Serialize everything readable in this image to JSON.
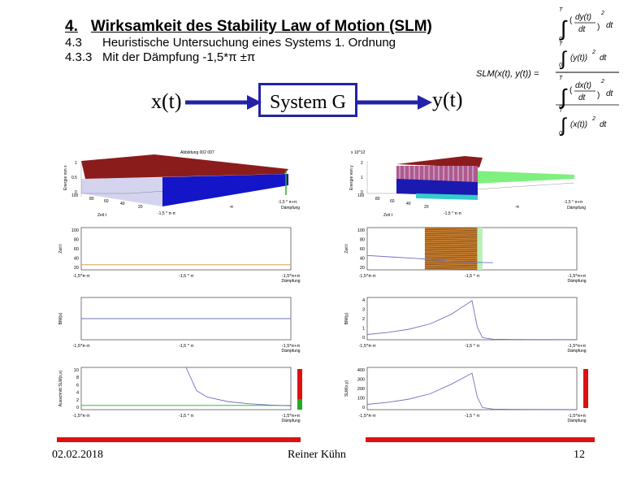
{
  "header": {
    "title_num": "4.",
    "title_text": "Wirksamkeit des Stability Law of Motion (SLM)",
    "sub1_num": "4.3",
    "sub1_text": "Heuristische Untersuchung eines Systems 1. Ordnung",
    "sub2_num": "4.3.3",
    "sub2_text": "Mit der Dämpfung -1,5*π ±π"
  },
  "diagram": {
    "input": "x(t)",
    "system": "System G",
    "output": "y(t)"
  },
  "formula": {
    "lhs": "SLM(x(t), y(t)) =",
    "upper": "T",
    "lower": "0",
    "dt": "dt",
    "num_top": "dy(t)",
    "num_bot": "dt",
    "den1": "(y(t))",
    "num2_top": "dx(t)",
    "num2_bot": "dt",
    "den2": "(x(t))",
    "pow": "2"
  },
  "footer": {
    "date": "02.02.2018",
    "author": "Reiner Kühn",
    "page": "12"
  },
  "colors": {
    "accent_blue": "#2323a8",
    "red": "#dd1111",
    "green": "#22aa22",
    "orange": "#d2a050",
    "line_blue": "#7070c0"
  },
  "chart_data": [
    {
      "type": "surface3d",
      "title": "Abbildung 002 007",
      "zlabel": "Energie von x",
      "ylabel": "Zeit t",
      "xlabel": "Dämpfung",
      "z_ticks": [
        "0",
        "0.5",
        "1"
      ],
      "y_ticks": [
        "100",
        "80",
        "60",
        "40",
        "20"
      ],
      "x_ticks": [
        "-1,5 * π-π",
        "-π",
        "-1,5 * π+π"
      ]
    },
    {
      "type": "surface3d",
      "exponent": "x 10^12",
      "zlabel": "Energie von y",
      "ylabel": "Zeit t",
      "xlabel": "Dämpfung",
      "z_ticks": [
        "0",
        "1",
        "2"
      ],
      "y_ticks": [
        "100",
        "80",
        "60",
        "40",
        "20"
      ],
      "x_ticks": [
        "-1,5 * π-π",
        "-π",
        "-1,5 * π+π"
      ]
    },
    {
      "type": "line",
      "ylabel": "Zeit t",
      "xlabel": "Dämpfung",
      "y_ticks": [
        "100",
        "80",
        "60",
        "40",
        "20"
      ],
      "ylim": [
        0,
        100
      ],
      "x_ticks": [
        "-1,5*π-π",
        "-1,5 * π",
        "-1,5*π+π"
      ],
      "x": [
        -1,
        1
      ],
      "values": [
        12,
        12
      ]
    },
    {
      "type": "area",
      "ylabel": "Zeit t",
      "xlabel": "Dämpfung",
      "y_ticks": [
        "100",
        "80",
        "60",
        "40",
        "20"
      ],
      "ylim": [
        0,
        100
      ],
      "x_ticks": [
        "-1,5*π-π",
        "-1,5 * π",
        "-1,5*π+π"
      ],
      "x": [
        -1,
        -0.8,
        -0.6,
        -0.4,
        -0.2,
        0,
        0.2
      ],
      "values": [
        34,
        31,
        28,
        25,
        20,
        18,
        17
      ],
      "shaded_region_x": [
        -0.45,
        0.05
      ]
    },
    {
      "type": "line",
      "ylabel": "BIM(x)",
      "xlabel": "Dämpfung",
      "y_ticks": [],
      "x_ticks": [
        "-1,5*π-π",
        "-1,5 * π",
        "-1,5*π+π"
      ],
      "x": [
        -1,
        1
      ],
      "values": [
        0,
        0
      ]
    },
    {
      "type": "line",
      "ylabel": "BIM(y)",
      "xlabel": "Dämpfung",
      "y_ticks": [
        "4",
        "3",
        "2",
        "1",
        "0"
      ],
      "ylim": [
        0,
        4
      ],
      "x_ticks": [
        "-1,5*π-π",
        "-1,5 * π",
        "-1,5*π+π"
      ],
      "x": [
        -1,
        -0.8,
        -0.6,
        -0.4,
        -0.2,
        0,
        0.05,
        0.1,
        0.2,
        0.5,
        1
      ],
      "values": [
        0.5,
        0.7,
        1.0,
        1.5,
        2.4,
        3.7,
        1.2,
        0.2,
        0.05,
        0.02,
        0.01
      ]
    },
    {
      "type": "line",
      "ylabel": "Ausschnitt SLM(x,x)",
      "xlabel": "Dämpfung",
      "y_ticks": [
        "10",
        "8",
        "6",
        "4",
        "2",
        "0"
      ],
      "ylim": [
        0,
        10
      ],
      "x_ticks": [
        "-1,5*π-π",
        "-1,5 * π",
        "-1,5*π+π"
      ],
      "series": [
        {
          "x": [
            -1,
            1
          ],
          "values": [
            1.0,
            1.0
          ]
        },
        {
          "x": [
            0,
            0.1,
            0.2,
            0.4,
            0.6,
            0.8,
            1.0
          ],
          "values": [
            10,
            4.5,
            3.0,
            1.9,
            1.4,
            1.1,
            0.9
          ]
        }
      ],
      "indicator_top": "red",
      "indicator_bottom": "green"
    },
    {
      "type": "line",
      "ylabel": "SLM(x,y)",
      "xlabel": "Dämpfung",
      "y_ticks": [
        "400",
        "300",
        "200",
        "100",
        "0"
      ],
      "ylim": [
        0,
        400
      ],
      "x_ticks": [
        "-1,5*π-π",
        "-1,5 * π",
        "-1,5*π+π"
      ],
      "x": [
        -1,
        -0.8,
        -0.6,
        -0.4,
        -0.2,
        0,
        0.05,
        0.1,
        0.2,
        0.5,
        1
      ],
      "values": [
        50,
        70,
        100,
        150,
        240,
        345,
        120,
        20,
        5,
        2,
        1
      ],
      "indicator": "red"
    }
  ]
}
